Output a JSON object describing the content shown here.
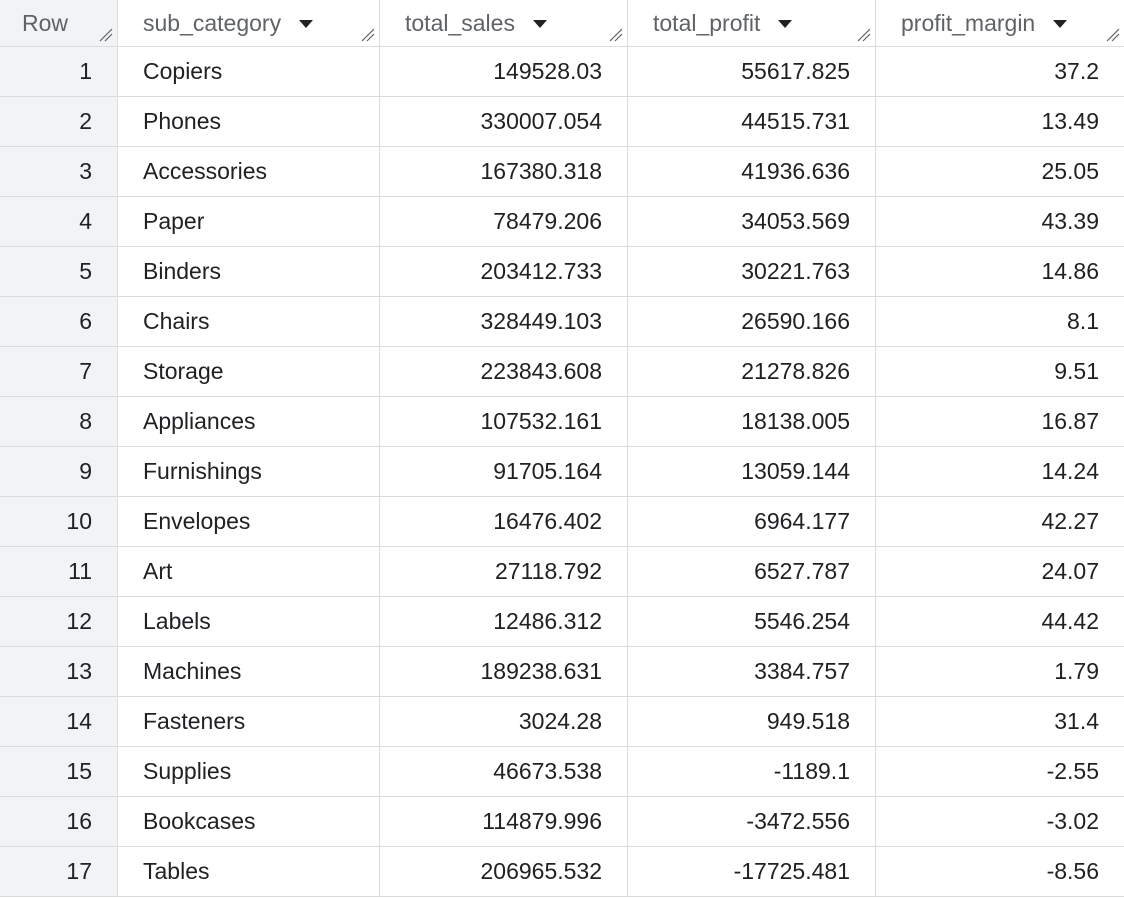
{
  "columns": [
    {
      "label": "Row",
      "sortable": false
    },
    {
      "label": "sub_category",
      "sortable": true
    },
    {
      "label": "total_sales",
      "sortable": true
    },
    {
      "label": "total_profit",
      "sortable": true
    },
    {
      "label": "profit_margin",
      "sortable": true
    }
  ],
  "rows": [
    {
      "row": "1",
      "sub_category": "Copiers",
      "total_sales": "149528.03",
      "total_profit": "55617.825",
      "profit_margin": "37.2"
    },
    {
      "row": "2",
      "sub_category": "Phones",
      "total_sales": "330007.054",
      "total_profit": "44515.731",
      "profit_margin": "13.49"
    },
    {
      "row": "3",
      "sub_category": "Accessories",
      "total_sales": "167380.318",
      "total_profit": "41936.636",
      "profit_margin": "25.05"
    },
    {
      "row": "4",
      "sub_category": "Paper",
      "total_sales": "78479.206",
      "total_profit": "34053.569",
      "profit_margin": "43.39"
    },
    {
      "row": "5",
      "sub_category": "Binders",
      "total_sales": "203412.733",
      "total_profit": "30221.763",
      "profit_margin": "14.86"
    },
    {
      "row": "6",
      "sub_category": "Chairs",
      "total_sales": "328449.103",
      "total_profit": "26590.166",
      "profit_margin": "8.1"
    },
    {
      "row": "7",
      "sub_category": "Storage",
      "total_sales": "223843.608",
      "total_profit": "21278.826",
      "profit_margin": "9.51"
    },
    {
      "row": "8",
      "sub_category": "Appliances",
      "total_sales": "107532.161",
      "total_profit": "18138.005",
      "profit_margin": "16.87"
    },
    {
      "row": "9",
      "sub_category": "Furnishings",
      "total_sales": "91705.164",
      "total_profit": "13059.144",
      "profit_margin": "14.24"
    },
    {
      "row": "10",
      "sub_category": "Envelopes",
      "total_sales": "16476.402",
      "total_profit": "6964.177",
      "profit_margin": "42.27"
    },
    {
      "row": "11",
      "sub_category": "Art",
      "total_sales": "27118.792",
      "total_profit": "6527.787",
      "profit_margin": "24.07"
    },
    {
      "row": "12",
      "sub_category": "Labels",
      "total_sales": "12486.312",
      "total_profit": "5546.254",
      "profit_margin": "44.42"
    },
    {
      "row": "13",
      "sub_category": "Machines",
      "total_sales": "189238.631",
      "total_profit": "3384.757",
      "profit_margin": "1.79"
    },
    {
      "row": "14",
      "sub_category": "Fasteners",
      "total_sales": "3024.28",
      "total_profit": "949.518",
      "profit_margin": "31.4"
    },
    {
      "row": "15",
      "sub_category": "Supplies",
      "total_sales": "46673.538",
      "total_profit": "-1189.1",
      "profit_margin": "-2.55"
    },
    {
      "row": "16",
      "sub_category": "Bookcases",
      "total_sales": "114879.996",
      "total_profit": "-3472.556",
      "profit_margin": "-3.02"
    },
    {
      "row": "17",
      "sub_category": "Tables",
      "total_sales": "206965.532",
      "total_profit": "-17725.481",
      "profit_margin": "-8.56"
    }
  ],
  "icons": {
    "sort": "sort-dropdown-icon",
    "resize": "column-resize-icon"
  },
  "colors": {
    "row_number_bg": "#f1f3f4",
    "border": "#dadce0",
    "header_text": "#5f6368",
    "cell_text": "#202124"
  }
}
